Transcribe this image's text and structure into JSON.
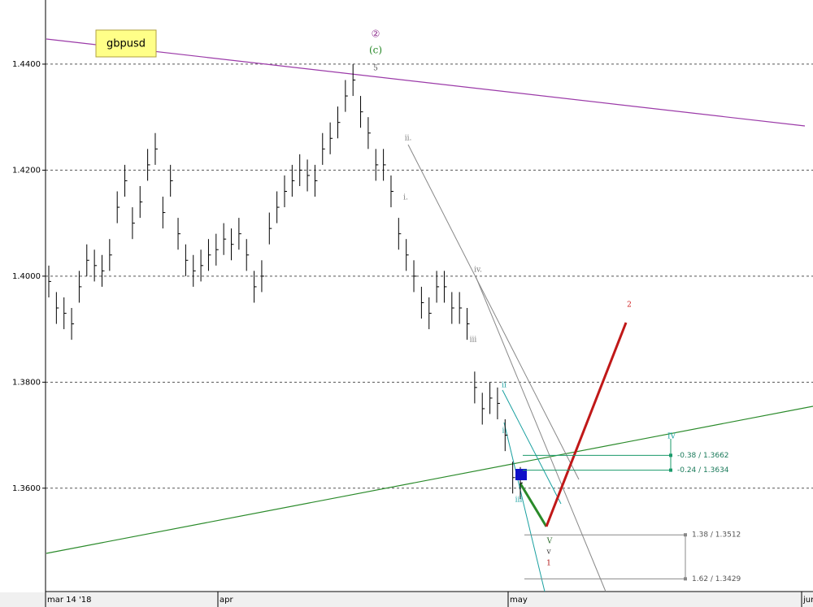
{
  "chart_data": {
    "type": "ohlc",
    "symbol": "gbpusd",
    "x_labels": [
      "mar 14 '18",
      "apr",
      "may",
      "jun"
    ],
    "ylim": [
      1.3405,
      1.4521
    ],
    "yticks": [
      {
        "value": 1.36,
        "label": "1.3600"
      },
      {
        "value": 1.38,
        "label": "1.3800"
      },
      {
        "value": 1.4,
        "label": "1.4000"
      },
      {
        "value": 1.42,
        "label": "1.4200"
      },
      {
        "value": 1.44,
        "label": "1.4400"
      }
    ],
    "grid": true,
    "bar_color": "#000000",
    "series": [
      {
        "name": "high",
        "values": [
          1.402,
          1.397,
          1.396,
          1.394,
          1.401,
          1.406,
          1.405,
          1.404,
          1.407,
          1.416,
          1.421,
          1.413,
          1.417,
          1.424,
          1.427,
          1.415,
          1.421,
          1.411,
          1.406,
          1.404,
          1.405,
          1.407,
          1.408,
          1.41,
          1.409,
          1.411,
          1.407,
          1.401,
          1.403,
          1.412,
          1.416,
          1.419,
          1.421,
          1.423,
          1.422,
          1.421,
          1.427,
          1.429,
          1.432,
          1.437,
          1.44,
          1.434,
          1.43,
          1.424,
          1.424,
          1.419,
          1.411,
          1.407,
          1.403,
          1.398,
          1.396,
          1.401,
          1.401,
          1.397,
          1.397,
          1.394,
          1.382,
          1.378,
          1.38,
          1.379,
          1.373,
          1.365,
          1.364
        ]
      },
      {
        "name": "low",
        "values": [
          1.396,
          1.391,
          1.39,
          1.388,
          1.395,
          1.4,
          1.399,
          1.398,
          1.401,
          1.41,
          1.415,
          1.407,
          1.411,
          1.418,
          1.421,
          1.409,
          1.415,
          1.405,
          1.4,
          1.398,
          1.399,
          1.401,
          1.402,
          1.404,
          1.403,
          1.405,
          1.401,
          1.395,
          1.397,
          1.406,
          1.41,
          1.413,
          1.415,
          1.417,
          1.416,
          1.415,
          1.421,
          1.423,
          1.426,
          1.431,
          1.434,
          1.428,
          1.424,
          1.418,
          1.418,
          1.413,
          1.405,
          1.401,
          1.397,
          1.392,
          1.39,
          1.395,
          1.395,
          1.391,
          1.391,
          1.388,
          1.376,
          1.372,
          1.374,
          1.373,
          1.367,
          1.359,
          1.358
        ]
      },
      {
        "name": "close",
        "values": [
          1.399,
          1.394,
          1.393,
          1.391,
          1.398,
          1.403,
          1.402,
          1.401,
          1.404,
          1.413,
          1.418,
          1.41,
          1.414,
          1.421,
          1.424,
          1.412,
          1.418,
          1.408,
          1.403,
          1.401,
          1.402,
          1.404,
          1.405,
          1.407,
          1.406,
          1.408,
          1.404,
          1.398,
          1.4,
          1.409,
          1.413,
          1.416,
          1.418,
          1.42,
          1.419,
          1.418,
          1.424,
          1.426,
          1.429,
          1.434,
          1.437,
          1.431,
          1.427,
          1.421,
          1.421,
          1.416,
          1.408,
          1.404,
          1.4,
          1.395,
          1.393,
          1.398,
          1.398,
          1.394,
          1.394,
          1.391,
          1.379,
          1.375,
          1.377,
          1.376,
          1.37,
          1.362,
          1.361
        ]
      }
    ],
    "fib_levels": [
      {
        "label": "-0.38 / 1.3662",
        "value": 1.3662,
        "color": "#1a9a6a"
      },
      {
        "label": "-0.24 / 1.3634",
        "value": 1.3634,
        "color": "#1a9a6a"
      },
      {
        "label": "1.38 / 1.3512",
        "value": 1.3512,
        "color": "#888888"
      },
      {
        "label": "1.62 / 1.3429",
        "value": 1.3429,
        "color": "#888888"
      }
    ],
    "wave_labels": [
      {
        "text": "②",
        "color": "#8b2a8b"
      },
      {
        "text": "(c)",
        "color": "#2a8a2a"
      },
      {
        "text": "5",
        "color": "#555555"
      },
      {
        "text": "ii.",
        "color": "#777777"
      },
      {
        "text": "i.",
        "color": "#777777"
      },
      {
        "text": "iv.",
        "color": "#777777"
      },
      {
        "text": "iii",
        "color": "#777777"
      },
      {
        "text": "ii",
        "color": "#19a0a0"
      },
      {
        "text": "i",
        "color": "#19a0a0"
      },
      {
        "text": "iii",
        "color": "#19a0a0"
      },
      {
        "text": "IV",
        "color": "#19a0a0"
      },
      {
        "text": "V",
        "color": "#2a6a2a"
      },
      {
        "text": "v",
        "color": "#333333"
      },
      {
        "text": "1",
        "color": "#b01010"
      },
      {
        "text": "2",
        "color": "#d02020"
      }
    ]
  }
}
